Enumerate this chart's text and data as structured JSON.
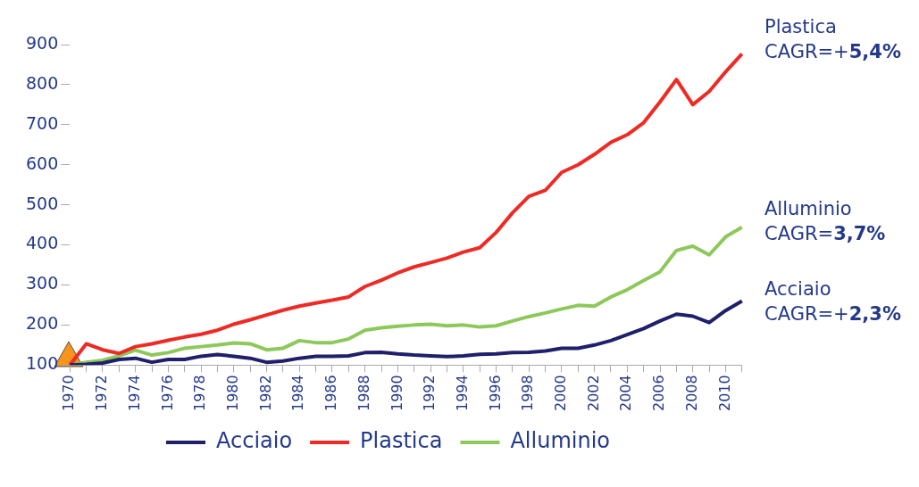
{
  "chart_data": {
    "type": "line",
    "categories": [
      "1970",
      null,
      "1972",
      null,
      "1974",
      null,
      "1976",
      null,
      "1978",
      null,
      "1980",
      null,
      "1982",
      null,
      "1984",
      null,
      "1986",
      null,
      "1988",
      null,
      "1990",
      null,
      "1992",
      null,
      "1994",
      null,
      "1996",
      null,
      "1998",
      null,
      "2000",
      null,
      "2002",
      null,
      "2004",
      null,
      "2006",
      null,
      "2008",
      null,
      "2010",
      null
    ],
    "series": [
      {
        "name": "Acciaio",
        "color": "#1f1f6b",
        "values": [
          100,
          102,
          105,
          114,
          117,
          107,
          114,
          114,
          122,
          126,
          122,
          117,
          107,
          110,
          117,
          122,
          122,
          123,
          131,
          132,
          128,
          125,
          123,
          121,
          123,
          127,
          128,
          131,
          132,
          135,
          142,
          142,
          150,
          161,
          176,
          191,
          210,
          227,
          222,
          206,
          236,
          260
        ]
      },
      {
        "name": "Plastica",
        "color": "#ee2a24",
        "values": [
          100,
          153,
          138,
          129,
          146,
          153,
          162,
          170,
          177,
          187,
          202,
          213,
          225,
          237,
          247,
          255,
          262,
          270,
          296,
          312,
          330,
          345,
          356,
          367,
          382,
          393,
          431,
          480,
          521,
          536,
          581,
          600,
          626,
          656,
          675,
          705,
          757,
          813,
          750,
          783,
          832,
          877
        ]
      },
      {
        "name": "Alluminio",
        "color": "#8dc85a",
        "values": [
          100,
          107,
          112,
          123,
          137,
          125,
          131,
          142,
          146,
          150,
          155,
          153,
          138,
          142,
          161,
          156,
          156,
          165,
          187,
          193,
          197,
          200,
          202,
          198,
          200,
          195,
          198,
          210,
          221,
          230,
          240,
          249,
          247,
          270,
          288,
          311,
          333,
          386,
          397,
          375,
          420,
          444
        ]
      }
    ],
    "ylim": [
      100,
      900
    ],
    "yticks": [
      100,
      200,
      300,
      400,
      500,
      600,
      700,
      800,
      900
    ],
    "grid": false,
    "legend": "bottom",
    "marker": "none",
    "line_style": "solid",
    "annotations": [
      "Plastica\nCAGR=+5,4%",
      "Alluminio\nCAGR=3,7%",
      "Acciaio\nCAGR=+2,3%"
    ]
  }
}
